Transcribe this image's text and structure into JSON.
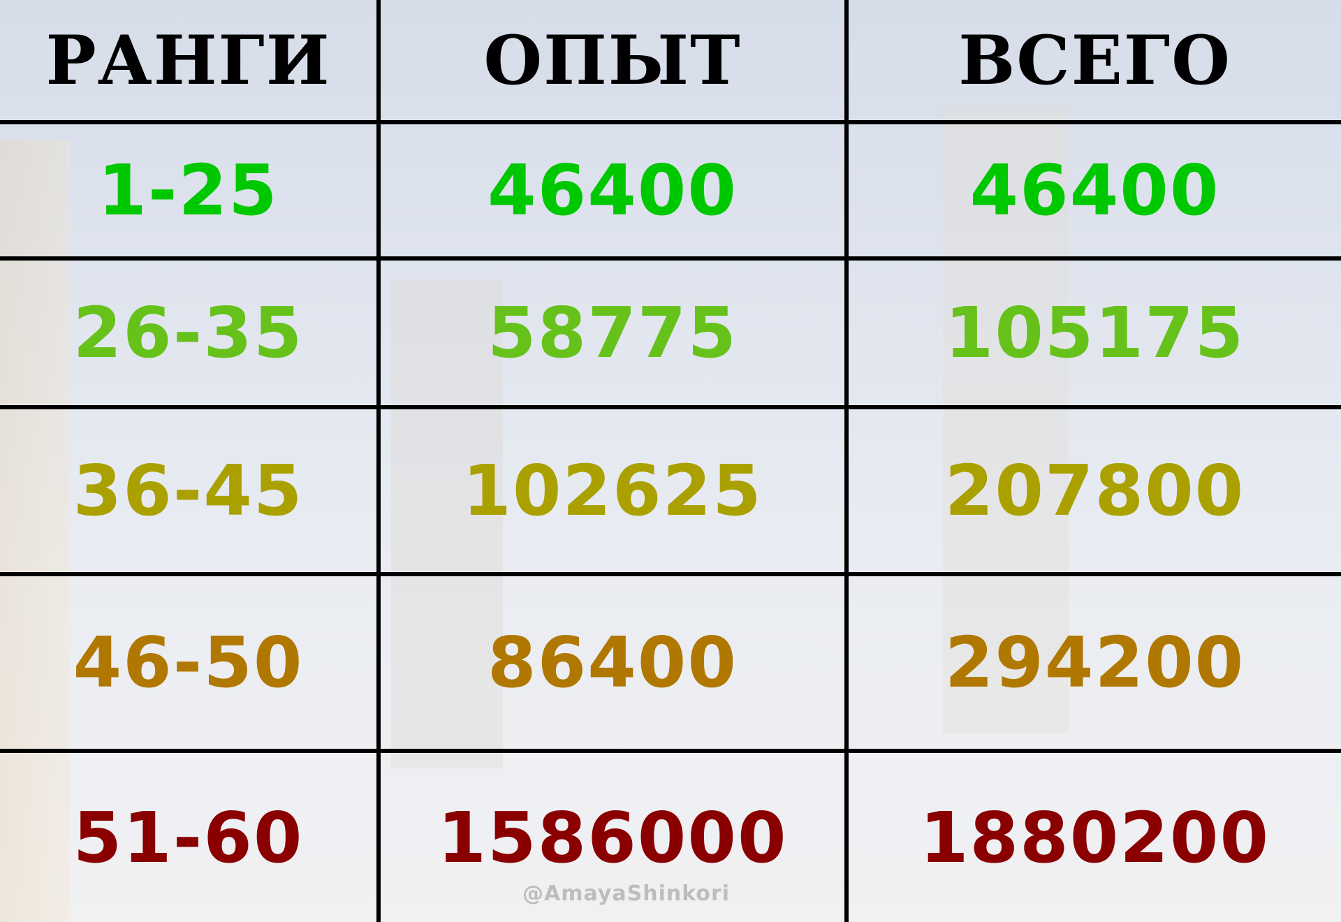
{
  "headers": [
    "РАНГИ",
    "ОПЫТ",
    "ВСЕГО"
  ],
  "rows": [
    {
      "rank": "1-25",
      "exp": "46400",
      "total": "46400",
      "color": "#00c800"
    },
    {
      "rank": "26-35",
      "exp": "58775",
      "total": "105175",
      "color": "#66c21a"
    },
    {
      "rank": "36-45",
      "exp": "102625",
      "total": "207800",
      "color": "#aaa000"
    },
    {
      "rank": "46-50",
      "exp": "86400",
      "total": "294200",
      "color": "#b07800"
    },
    {
      "rank": "51-60",
      "exp": "1586000",
      "total": "1880200",
      "color": "#8a0000"
    }
  ],
  "watermark": "@AmayaShinkori"
}
